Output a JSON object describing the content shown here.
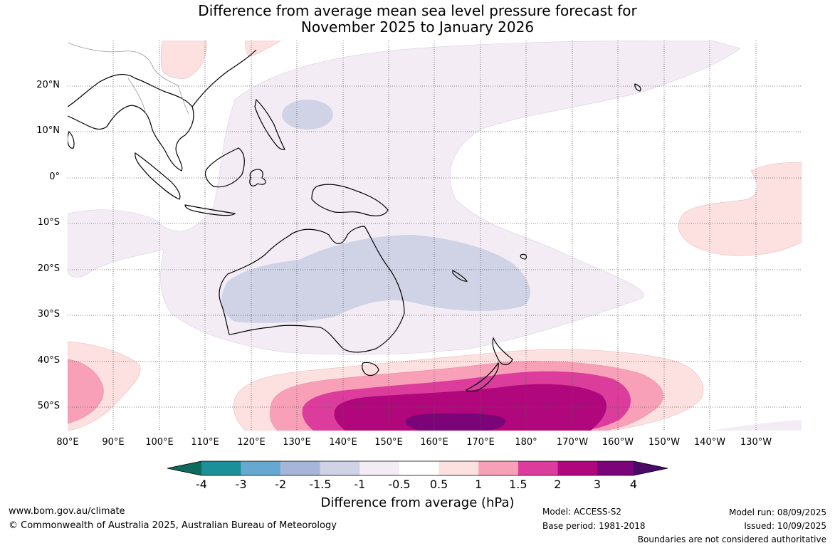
{
  "title_line1": "Difference from average mean sea level pressure forecast for",
  "title_line2": "November 2025 to January 2026",
  "latitude_labels": [
    "20°N",
    "10°N",
    "0°",
    "10°S",
    "20°S",
    "30°S",
    "40°S",
    "50°S"
  ],
  "longitude_labels": [
    "80°E",
    "90°E",
    "100°E",
    "110°E",
    "120°E",
    "130°E",
    "140°E",
    "150°E",
    "160°E",
    "170°E",
    "180°",
    "170°W",
    "160°W",
    "150°W",
    "140°W",
    "130°W"
  ],
  "colorbar": {
    "title": "Difference from average (hPa)",
    "ticks": [
      "-4",
      "-3",
      "-2",
      "-1.5",
      "-1",
      "-0.5",
      "0.5",
      "1",
      "1.5",
      "2",
      "3",
      "4"
    ],
    "colors": [
      "#0d6b5d",
      "#1b9098",
      "#66a8d0",
      "#a6b6d8",
      "#d0d2e6",
      "#f3ecf5",
      "#ffffff",
      "#fde0e0",
      "#f8a0b8",
      "#dc3c9c",
      "#b0087c",
      "#7a0478",
      "#4a0a66"
    ]
  },
  "legend_colors": {
    "lavender_light": "#f3ecf5",
    "lavender": "#d0d2e6",
    "pink_light": "#fde0e0",
    "pink": "#f8a0b8",
    "magenta": "#dc3c9c",
    "deep_magenta": "#b0087c",
    "purple": "#7a0478"
  },
  "footer": {
    "website": "www.bom.gov.au/climate",
    "copyright": "© Commonwealth of Australia 2025, Australian Bureau of Meteorology",
    "model": "Model: ACCESS-S2",
    "base_period": "Base period: 1981-2018",
    "model_run": "Model run: 08/09/2025",
    "issued": "Issued: 10/09/2025",
    "boundaries": "Boundaries are not considered authoritative"
  }
}
